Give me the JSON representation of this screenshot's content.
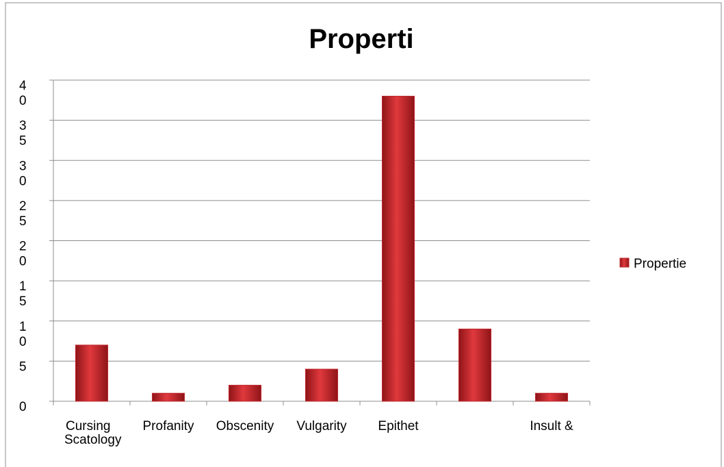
{
  "chart_data": {
    "type": "bar",
    "title": "Properti",
    "categories": [
      "Cursing Scatology",
      "Profanity",
      "Obscenity",
      "Vulgarity",
      "Epithet",
      null,
      "Insult &"
    ],
    "series": [
      {
        "name": "Propertie",
        "color": "#c0282d",
        "values": [
          7,
          1,
          2,
          4,
          38,
          9,
          1
        ]
      }
    ],
    "ylim": [
      0,
      40
    ],
    "yticks": [
      0,
      5,
      10,
      15,
      20,
      25,
      30,
      35,
      40
    ],
    "grid": true,
    "legend": "right"
  }
}
